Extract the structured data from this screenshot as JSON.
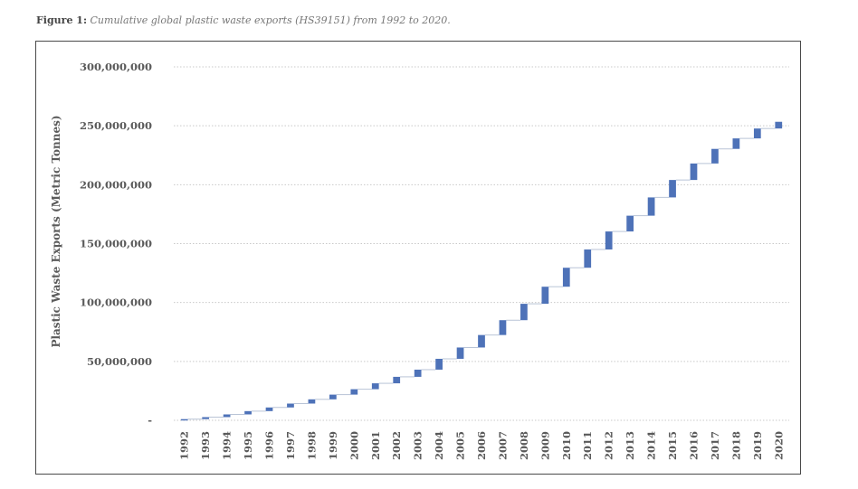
{
  "figure": {
    "label": "Figure 1:",
    "caption": "Cumulative global plastic waste exports (HS39151) from 1992 to 2020."
  },
  "chart_data": {
    "type": "waterfall",
    "title": "",
    "xlabel": "",
    "ylabel": "Plastic Waste Exports (Metric Tonnes)",
    "ylim": [
      0,
      300000000
    ],
    "yticks": [
      0,
      50000000,
      100000000,
      150000000,
      200000000,
      250000000,
      300000000
    ],
    "ytick_labels": [
      "-",
      "50,000,000",
      "100,000,000",
      "150,000,000",
      "200,000,000",
      "250,000,000",
      "300,000,000"
    ],
    "grid": true,
    "bar_color": "#4e72b8",
    "connector_color": "#b9c4d6",
    "grid_color": "#c9c9c9",
    "categories": [
      "1992",
      "1993",
      "1994",
      "1995",
      "1996",
      "1997",
      "1998",
      "1999",
      "2000",
      "2001",
      "2002",
      "2003",
      "2004",
      "2005",
      "2006",
      "2007",
      "2008",
      "2009",
      "2010",
      "2011",
      "2012",
      "2013",
      "2014",
      "2015",
      "2016",
      "2017",
      "2018",
      "2019",
      "2020"
    ],
    "series": [
      {
        "values": [
          1000000,
          1700000,
          2300000,
          2800000,
          3100000,
          3300000,
          3600000,
          4000000,
          4600000,
          5000000,
          5500000,
          6100000,
          9200000,
          9600000,
          10600000,
          12600000,
          13900000,
          14500000,
          16100000,
          15500000,
          15300000,
          13400000,
          15500000,
          14800000,
          14000000,
          12400000,
          8900000,
          8400000,
          5700000
        ],
        "cumulative_end": [
          1000000,
          2700000,
          5000000,
          7800000,
          10900000,
          14200000,
          17800000,
          21800000,
          26400000,
          31400000,
          36900000,
          43000000,
          52200000,
          61800000,
          72400000,
          85000000,
          98900000,
          113400000,
          129500000,
          145000000,
          160300000,
          173700000,
          189200000,
          204000000,
          218000000,
          230400000,
          239300000,
          247700000,
          253400000
        ]
      }
    ]
  }
}
